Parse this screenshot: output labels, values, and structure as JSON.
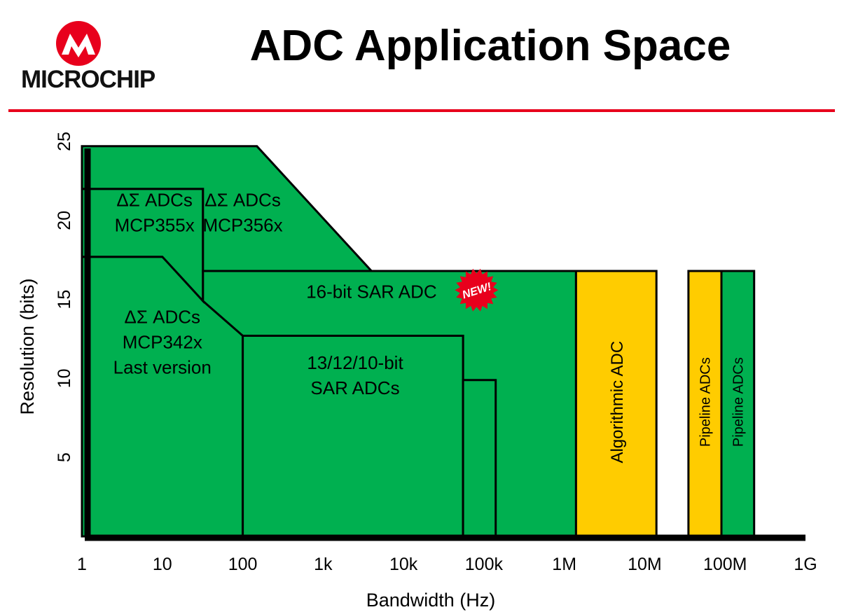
{
  "header": {
    "title": "ADC Application Space",
    "logo_text": "MICROCHIP",
    "colors": {
      "brand_red": "#e8001c",
      "rule": "#e8001c"
    }
  },
  "chart_data": {
    "type": "area",
    "title": "",
    "xlabel": "Bandwidth (Hz)",
    "ylabel": "Resolution (bits)",
    "x_scale": "log",
    "xlim": [
      1,
      1000000000
    ],
    "ylim": [
      0,
      25
    ],
    "x_ticks": [
      {
        "value": 1,
        "label": "1"
      },
      {
        "value": 10,
        "label": "10"
      },
      {
        "value": 100,
        "label": "100"
      },
      {
        "value": 1000,
        "label": "1k"
      },
      {
        "value": 10000,
        "label": "10k"
      },
      {
        "value": 100000,
        "label": "100k"
      },
      {
        "value": 1000000,
        "label": "1M"
      },
      {
        "value": 10000000,
        "label": "10M"
      },
      {
        "value": 100000000,
        "label": "100M"
      },
      {
        "value": 1000000000,
        "label": "1G"
      }
    ],
    "y_ticks": [
      5,
      10,
      15,
      20,
      25
    ],
    "grid": false,
    "colors": {
      "green": "#00b050",
      "yellow": "#ffcc00",
      "axis": "#000000"
    },
    "regions": [
      {
        "id": "ds-342x",
        "labels": [
          "ΔΣ ADCs",
          "MCP342x",
          "Last version"
        ],
        "color": "#00b050",
        "polygon": [
          [
            1,
            0
          ],
          [
            1,
            17.7
          ],
          [
            10,
            17.7
          ],
          [
            100,
            12.7
          ],
          [
            100,
            0
          ]
        ],
        "label_at": [
          10,
          12.3
        ]
      },
      {
        "id": "ds-355x",
        "labels": [
          "ΔΣ ADCs",
          "MCP355x"
        ],
        "color": "#00b050",
        "polygon": [
          [
            1,
            17.7
          ],
          [
            1,
            22
          ],
          [
            32,
            22
          ],
          [
            32,
            14.9
          ],
          [
            10,
            17.7
          ]
        ],
        "label_at": [
          8,
          20.5
        ]
      },
      {
        "id": "ds-356x",
        "labels": [
          "ΔΣ ADCs",
          "MCP356x"
        ],
        "color": "#00b050",
        "polygon": [
          [
            1,
            22
          ],
          [
            1,
            24.7
          ],
          [
            150,
            24.7
          ],
          [
            4000,
            16.8
          ],
          [
            32,
            16.8
          ],
          [
            32,
            22
          ]
        ],
        "label_at": [
          100,
          20.5
        ]
      },
      {
        "id": "sar-16",
        "labels": [
          "16-bit SAR ADC"
        ],
        "badge": "NEW!",
        "color": "#00b050",
        "polygon": [
          [
            32,
            16.8
          ],
          [
            32,
            14.9
          ],
          [
            100,
            12.7
          ],
          [
            55000,
            12.7
          ],
          [
            55000,
            0
          ],
          [
            1400000,
            0
          ],
          [
            1400000,
            16.8
          ]
        ],
        "label_at": [
          4000,
          15.5
        ]
      },
      {
        "id": "sar-13-12-10",
        "labels": [
          "13/12/10-bit",
          "SAR ADCs"
        ],
        "color": "#00b050",
        "polygon": [
          [
            100,
            0
          ],
          [
            100,
            12.7
          ],
          [
            55000,
            12.7
          ],
          [
            55000,
            0
          ]
        ],
        "label_at": [
          2500,
          10.2
        ]
      },
      {
        "id": "sar-small",
        "labels": [],
        "color": "#00b050",
        "polygon": [
          [
            55000,
            0
          ],
          [
            55000,
            9.9
          ],
          [
            140000,
            9.9
          ],
          [
            140000,
            0
          ]
        ]
      },
      {
        "id": "algorithmic",
        "labels": [
          "Algorithmic ADC"
        ],
        "color": "#ffcc00",
        "vertical_label": true,
        "polygon": [
          [
            1400000,
            0
          ],
          [
            1400000,
            16.8
          ],
          [
            14000000,
            16.8
          ],
          [
            14000000,
            0
          ]
        ],
        "label_at": [
          4500000,
          8.5
        ]
      },
      {
        "id": "pipeline-yellow",
        "labels": [
          "Pipeline ADCs"
        ],
        "color": "#ffcc00",
        "vertical_label": true,
        "polygon": [
          [
            35000000,
            0
          ],
          [
            35000000,
            16.8
          ],
          [
            90000000,
            16.8
          ],
          [
            90000000,
            0
          ]
        ],
        "label_at": [
          56000000,
          8.5
        ]
      },
      {
        "id": "pipeline-green",
        "labels": [
          "Pipeline ADCs"
        ],
        "color": "#00b050",
        "vertical_label": true,
        "polygon": [
          [
            90000000,
            0
          ],
          [
            90000000,
            16.8
          ],
          [
            230000000,
            16.8
          ],
          [
            230000000,
            0
          ]
        ],
        "label_at": [
          145000000,
          8.5
        ]
      }
    ]
  }
}
